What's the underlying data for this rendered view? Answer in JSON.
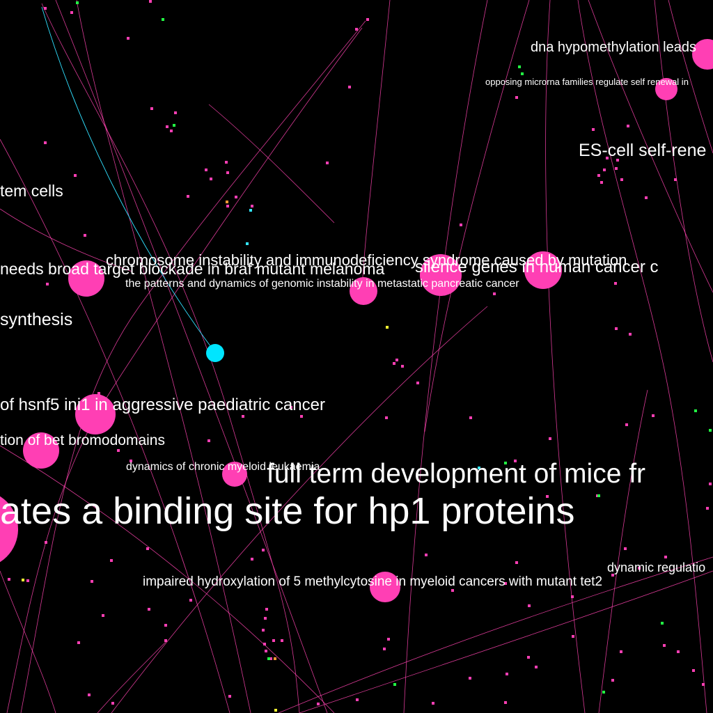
{
  "colors": {
    "background": "#000000",
    "edge": "#ff44b0",
    "edge_highlight": "#30e0ff",
    "node": "#ff3fb4",
    "node_highlight": "#00e5ff",
    "label": "#ffffff",
    "dot_green": "#22ff44",
    "dot_yellow": "#ffff33",
    "dot_orange": "#ff9933",
    "dot_cyan": "#33e6ff"
  },
  "labels": {
    "dna_hypomethylation": "dna hypomethylation leads",
    "opposing_microrna": "opposing microrna families regulate self renewal in",
    "es_cell": "ES-cell self-rene",
    "stem_cells": "tem cells",
    "chromosome_instability": "chromosome instability and immunodeficiency syndrome caused by mutation",
    "needs_broad_target": "needs broad target blockade in braf mutant melanoma",
    "silence_genes": "silence genes in human cancer c",
    "patterns_dynamics": "the patterns and dynamics of genomic instability in metastatic pancreatic cancer",
    "synthesis": "synthesis",
    "hsnf5": "of hsnf5 ini1 in aggressive paediatric cancer",
    "bet_bromodomains": "tion of bet bromodomains",
    "chronic_myeloid": "dynamics of chronic myeloid leukaemia",
    "full_term": "full term development of mice fr",
    "hp1_proteins": "ates a binding site for hp1 proteins",
    "dynamic_regulation": "dynamic regulatio",
    "impaired_hydroxylation": "impaired hydroxylation of 5 methylcytosine in myeloid cancers with mutant tet2"
  }
}
